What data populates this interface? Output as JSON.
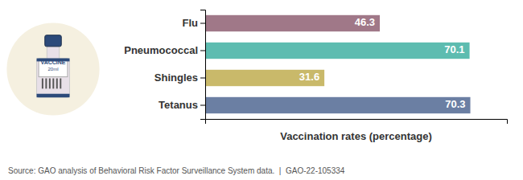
{
  "chart_data": {
    "type": "bar",
    "orientation": "horizontal",
    "categories": [
      "Flu",
      "Pneumococcal",
      "Shingles",
      "Tetanus"
    ],
    "values": [
      46.3,
      70.1,
      31.6,
      70.3
    ],
    "colors": [
      "#a07888",
      "#5dbcb0",
      "#c9b96a",
      "#6b7fa3"
    ],
    "data_labels": true,
    "x_label": "Vaccination rates (percentage)",
    "xlim": [
      0,
      80
    ],
    "xticks": [],
    "tick_labels": "y",
    "grid": false,
    "annotations": [
      "VACCINE",
      "20ml"
    ],
    "source": "Source: GAO analysis of Behavioral Risk Factor Surveillance System data.  |  GAO-22-105334"
  }
}
